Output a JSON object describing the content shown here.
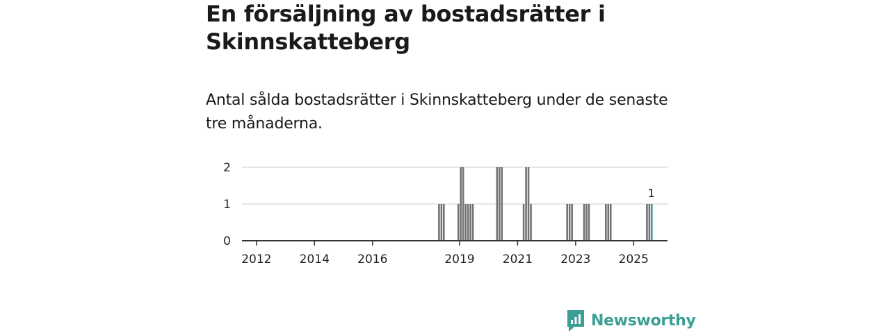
{
  "title": "En försäljning av bostadsrätter i Skinnskatteberg",
  "subtitle": "Antal sålda bostadsrätter i Skinnskatteberg under de senaste tre månaderna.",
  "brand": {
    "name": "Newsworthy",
    "color": "#3a9e94",
    "icon": "newsworthy-logo-icon"
  },
  "colors": {
    "bar": "#737373",
    "highlight": "#3a9e94",
    "axis": "#333333",
    "grid": "#dddddd"
  },
  "chart_data": {
    "type": "bar",
    "title": "En försäljning av bostadsrätter i Skinnskatteberg",
    "subtitle": "Antal sålda bostadsrätter i Skinnskatteberg under de senaste tre månaderna.",
    "xlabel": "",
    "ylabel": "",
    "x_unit": "month",
    "xlim": [
      "2011-07",
      "2026-03"
    ],
    "ylim": [
      0,
      2
    ],
    "y_ticks": [
      0,
      1,
      2
    ],
    "x_ticks": [
      "2012",
      "2014",
      "2016",
      "2019",
      "2021",
      "2023",
      "2025"
    ],
    "grid": true,
    "legend": "none",
    "series": [
      {
        "x": [
          "2018-04",
          "2018-05",
          "2018-06",
          "2018-12",
          "2019-01",
          "2019-02",
          "2019-03",
          "2019-04",
          "2019-05",
          "2019-06",
          "2020-04",
          "2020-05",
          "2020-06",
          "2021-03",
          "2021-04",
          "2021-05",
          "2021-06",
          "2022-09",
          "2022-10",
          "2022-11",
          "2023-04",
          "2023-05",
          "2023-06",
          "2024-01",
          "2024-02",
          "2024-03",
          "2025-06",
          "2025-07",
          "2025-08"
        ],
        "values": [
          1,
          1,
          1,
          1,
          2,
          2,
          1,
          1,
          1,
          1,
          2,
          2,
          2,
          1,
          2,
          2,
          1,
          1,
          1,
          1,
          1,
          1,
          1,
          1,
          1,
          1,
          1,
          1,
          1
        ]
      }
    ],
    "highlight": {
      "x": "2025-08",
      "value": 1,
      "label": "1"
    }
  }
}
